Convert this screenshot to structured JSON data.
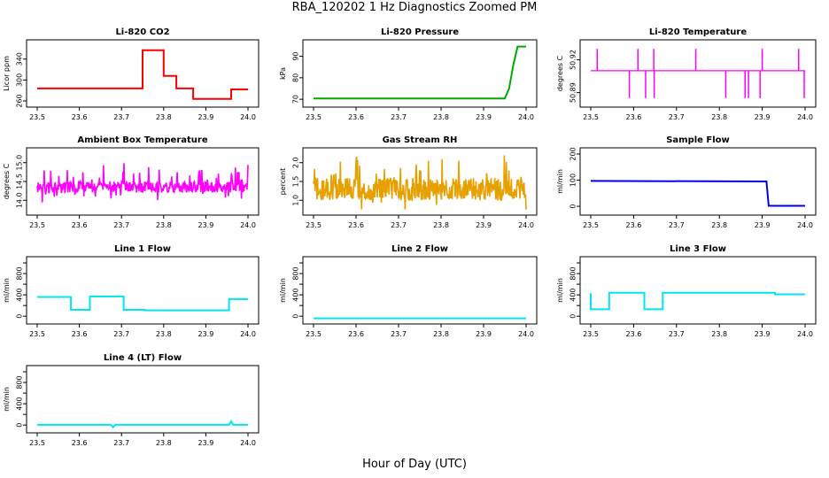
{
  "figure": {
    "title": "RBA_120202  1 Hz Diagnostics Zoomed PM",
    "xlabel": "Hour of Day (UTC)"
  },
  "chart_data": [
    {
      "type": "line",
      "title": "Li-820 CO2",
      "ylabel": "Licor ppm",
      "xlim": [
        23.5,
        24.0
      ],
      "xticks": [
        "23.5",
        "23.6",
        "23.7",
        "23.8",
        "23.9",
        "24.0"
      ],
      "ylim": [
        255,
        370
      ],
      "yticks": [
        "260",
        "300",
        "340"
      ],
      "ytick_values": [
        260,
        300,
        340
      ],
      "color": "#ff0000",
      "series": [
        {
          "x": [
            23.5,
            23.75,
            23.75,
            23.8,
            23.8,
            23.83,
            23.83,
            23.87,
            23.87,
            23.96,
            23.96,
            24.0
          ],
          "y": [
            284,
            284,
            357,
            357,
            308,
            308,
            284,
            284,
            264,
            264,
            282,
            282
          ]
        }
      ]
    },
    {
      "type": "line",
      "title": "Li-820 Pressure",
      "ylabel": "kPa",
      "xlim": [
        23.5,
        24.0
      ],
      "xticks": [
        "23.5",
        "23.6",
        "23.7",
        "23.8",
        "23.9",
        "24.0"
      ],
      "ylim": [
        68,
        96
      ],
      "yticks": [
        "70",
        "80",
        "90"
      ],
      "ytick_values": [
        70,
        80,
        90
      ],
      "color": "#00aa00",
      "series": [
        {
          "x": [
            23.5,
            23.93,
            23.95,
            23.96,
            23.97,
            23.98,
            24.0
          ],
          "y": [
            70.4,
            70.4,
            70.4,
            75,
            86,
            94.5,
            94.5
          ]
        }
      ]
    },
    {
      "type": "line",
      "title": "Li-820 Temperature",
      "ylabel": "degrees C",
      "xlim": [
        23.5,
        24.0
      ],
      "xticks": [
        "23.5",
        "23.6",
        "23.7",
        "23.8",
        "23.9",
        "24.0"
      ],
      "ylim": [
        50.88,
        50.935
      ],
      "yticks": [
        "50.89",
        "50.92"
      ],
      "ytick_values": [
        50.89,
        50.92
      ],
      "color": "#ff00ff",
      "baseline": 50.91,
      "spikes": [
        {
          "x": 23.515,
          "y": 50.93
        },
        {
          "x": 23.59,
          "y": 50.885
        },
        {
          "x": 23.61,
          "y": 50.93
        },
        {
          "x": 23.628,
          "y": 50.885
        },
        {
          "x": 23.647,
          "y": 50.93
        },
        {
          "x": 23.648,
          "y": 50.885
        },
        {
          "x": 23.745,
          "y": 50.93
        },
        {
          "x": 23.815,
          "y": 50.885
        },
        {
          "x": 23.86,
          "y": 50.885
        },
        {
          "x": 23.868,
          "y": 50.885
        },
        {
          "x": 23.895,
          "y": 50.885
        },
        {
          "x": 23.9,
          "y": 50.93
        },
        {
          "x": 23.985,
          "y": 50.93
        },
        {
          "x": 23.998,
          "y": 50.885
        }
      ]
    },
    {
      "type": "line",
      "title": "Ambient Box Temperature",
      "ylabel": "degrees C",
      "xlim": [
        23.5,
        24.0
      ],
      "xticks": [
        "23.5",
        "23.6",
        "23.7",
        "23.8",
        "23.9",
        "24.0"
      ],
      "ylim": [
        13.7,
        15.3
      ],
      "yticks": [
        "14.0",
        "14.5",
        "15.0"
      ],
      "ytick_values": [
        14.0,
        14.5,
        15.0
      ],
      "color": "#ff00ff",
      "noise": {
        "center": 14.35,
        "amplitude": 0.45,
        "spread": 0.15
      }
    },
    {
      "type": "line",
      "title": "Gas Stream RH",
      "ylabel": "percent",
      "xlim": [
        23.5,
        24.0
      ],
      "xticks": [
        "23.5",
        "23.6",
        "23.7",
        "23.8",
        "23.9",
        "24.0"
      ],
      "ylim": [
        0.7,
        2.3
      ],
      "yticks": [
        "1.0",
        "1.5",
        "2.0"
      ],
      "ytick_values": [
        1.0,
        1.5,
        2.0
      ],
      "color": "#e6a000",
      "noise": {
        "center": 1.3,
        "amplitude": 0.55,
        "spread": 0.3
      }
    },
    {
      "type": "line",
      "title": "Sample Flow",
      "ylabel": "ml/min",
      "xlim": [
        23.5,
        24.0
      ],
      "xticks": [
        "23.5",
        "23.6",
        "23.7",
        "23.8",
        "23.9",
        "24.0"
      ],
      "ylim": [
        -20,
        210
      ],
      "yticks": [
        "0",
        "100",
        "200"
      ],
      "ytick_values": [
        0,
        100,
        200
      ],
      "color": "#0000ee",
      "series": [
        {
          "x": [
            23.5,
            23.91,
            23.915,
            24.0
          ],
          "y": [
            97,
            95,
            2,
            2
          ]
        }
      ]
    },
    {
      "type": "line",
      "title": "Line 1 Flow",
      "ylabel": "ml/min",
      "xlim": [
        23.5,
        24.0
      ],
      "xticks": [
        "23.5",
        "23.6",
        "23.7",
        "23.8",
        "23.9",
        "24.0"
      ],
      "ylim": [
        -80,
        1050
      ],
      "yticks": [
        "0",
        "400",
        "800"
      ],
      "yticks_minor": [
        200,
        600,
        1000
      ],
      "ytick_values": [
        0,
        400,
        800
      ],
      "color": "#00e5ee",
      "series": [
        {
          "x": [
            23.5,
            23.58,
            23.58,
            23.625,
            23.625,
            23.705,
            23.705,
            23.755,
            23.755,
            23.955,
            23.955,
            24.0
          ],
          "y": [
            360,
            360,
            120,
            120,
            370,
            370,
            120,
            120,
            110,
            110,
            320,
            320
          ]
        }
      ]
    },
    {
      "type": "line",
      "title": "Line 2 Flow",
      "ylabel": "ml/min",
      "xlim": [
        23.5,
        24.0
      ],
      "xticks": [
        "23.5",
        "23.6",
        "23.7",
        "23.8",
        "23.9",
        "24.0"
      ],
      "ylim": [
        -80,
        1050
      ],
      "yticks": [
        "0",
        "400",
        "800"
      ],
      "yticks_minor": [
        200,
        600,
        1000
      ],
      "ytick_values": [
        0,
        400,
        800
      ],
      "color": "#00e5ee",
      "series": [
        {
          "x": [
            23.5,
            24.0
          ],
          "y": [
            -40,
            -40
          ]
        }
      ]
    },
    {
      "type": "line",
      "title": "Line 3 Flow",
      "ylabel": "ml/min",
      "xlim": [
        23.5,
        24.0
      ],
      "xticks": [
        "23.5",
        "23.6",
        "23.7",
        "23.8",
        "23.9",
        "24.0"
      ],
      "ylim": [
        -80,
        1050
      ],
      "yticks": [
        "0",
        "400",
        "800"
      ],
      "yticks_minor": [
        200,
        600,
        1000
      ],
      "ytick_values": [
        0,
        400,
        800
      ],
      "color": "#00e5ee",
      "series": [
        {
          "x": [
            23.5,
            23.5,
            23.5,
            23.543,
            23.543,
            23.625,
            23.625,
            23.668,
            23.668,
            23.93,
            23.93,
            24.0
          ],
          "y": [
            430,
            130,
            130,
            130,
            440,
            440,
            130,
            130,
            440,
            440,
            410,
            410
          ]
        }
      ]
    },
    {
      "type": "line",
      "title": "Line 4 (LT) Flow",
      "ylabel": "ml/min",
      "xlim": [
        23.5,
        24.0
      ],
      "xticks": [
        "23.5",
        "23.6",
        "23.7",
        "23.8",
        "23.9",
        "24.0"
      ],
      "ylim": [
        -80,
        1050
      ],
      "yticks": [
        "0",
        "400",
        "800"
      ],
      "yticks_minor": [
        200,
        600,
        1000
      ],
      "ytick_values": [
        0,
        400,
        800
      ],
      "color": "#00e5ee",
      "series": [
        {
          "x": [
            23.5,
            23.675,
            23.68,
            23.685,
            23.7,
            23.955,
            23.96,
            23.965,
            24.0
          ],
          "y": [
            5,
            5,
            -40,
            5,
            5,
            5,
            70,
            5,
            5
          ]
        }
      ]
    }
  ]
}
